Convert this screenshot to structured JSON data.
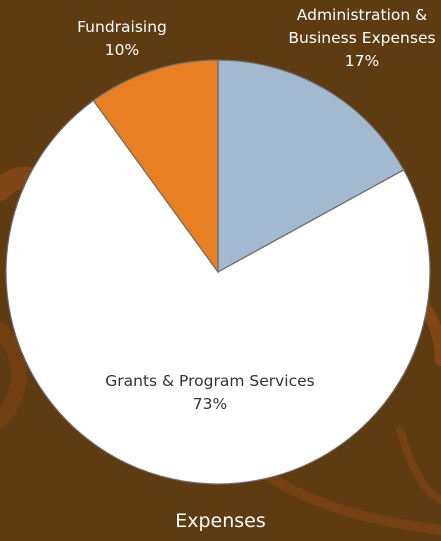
{
  "chart_data": {
    "type": "pie",
    "title": "Expenses",
    "categories": [
      "Administration & Business Expenses",
      "Grants & Program Services",
      "Fundraising"
    ],
    "values": [
      17,
      73,
      10
    ],
    "value_labels": [
      "17%",
      "73%",
      "10%"
    ],
    "colors": [
      "#a3b9d0",
      "#ffffff",
      "#e87f22"
    ]
  }
}
